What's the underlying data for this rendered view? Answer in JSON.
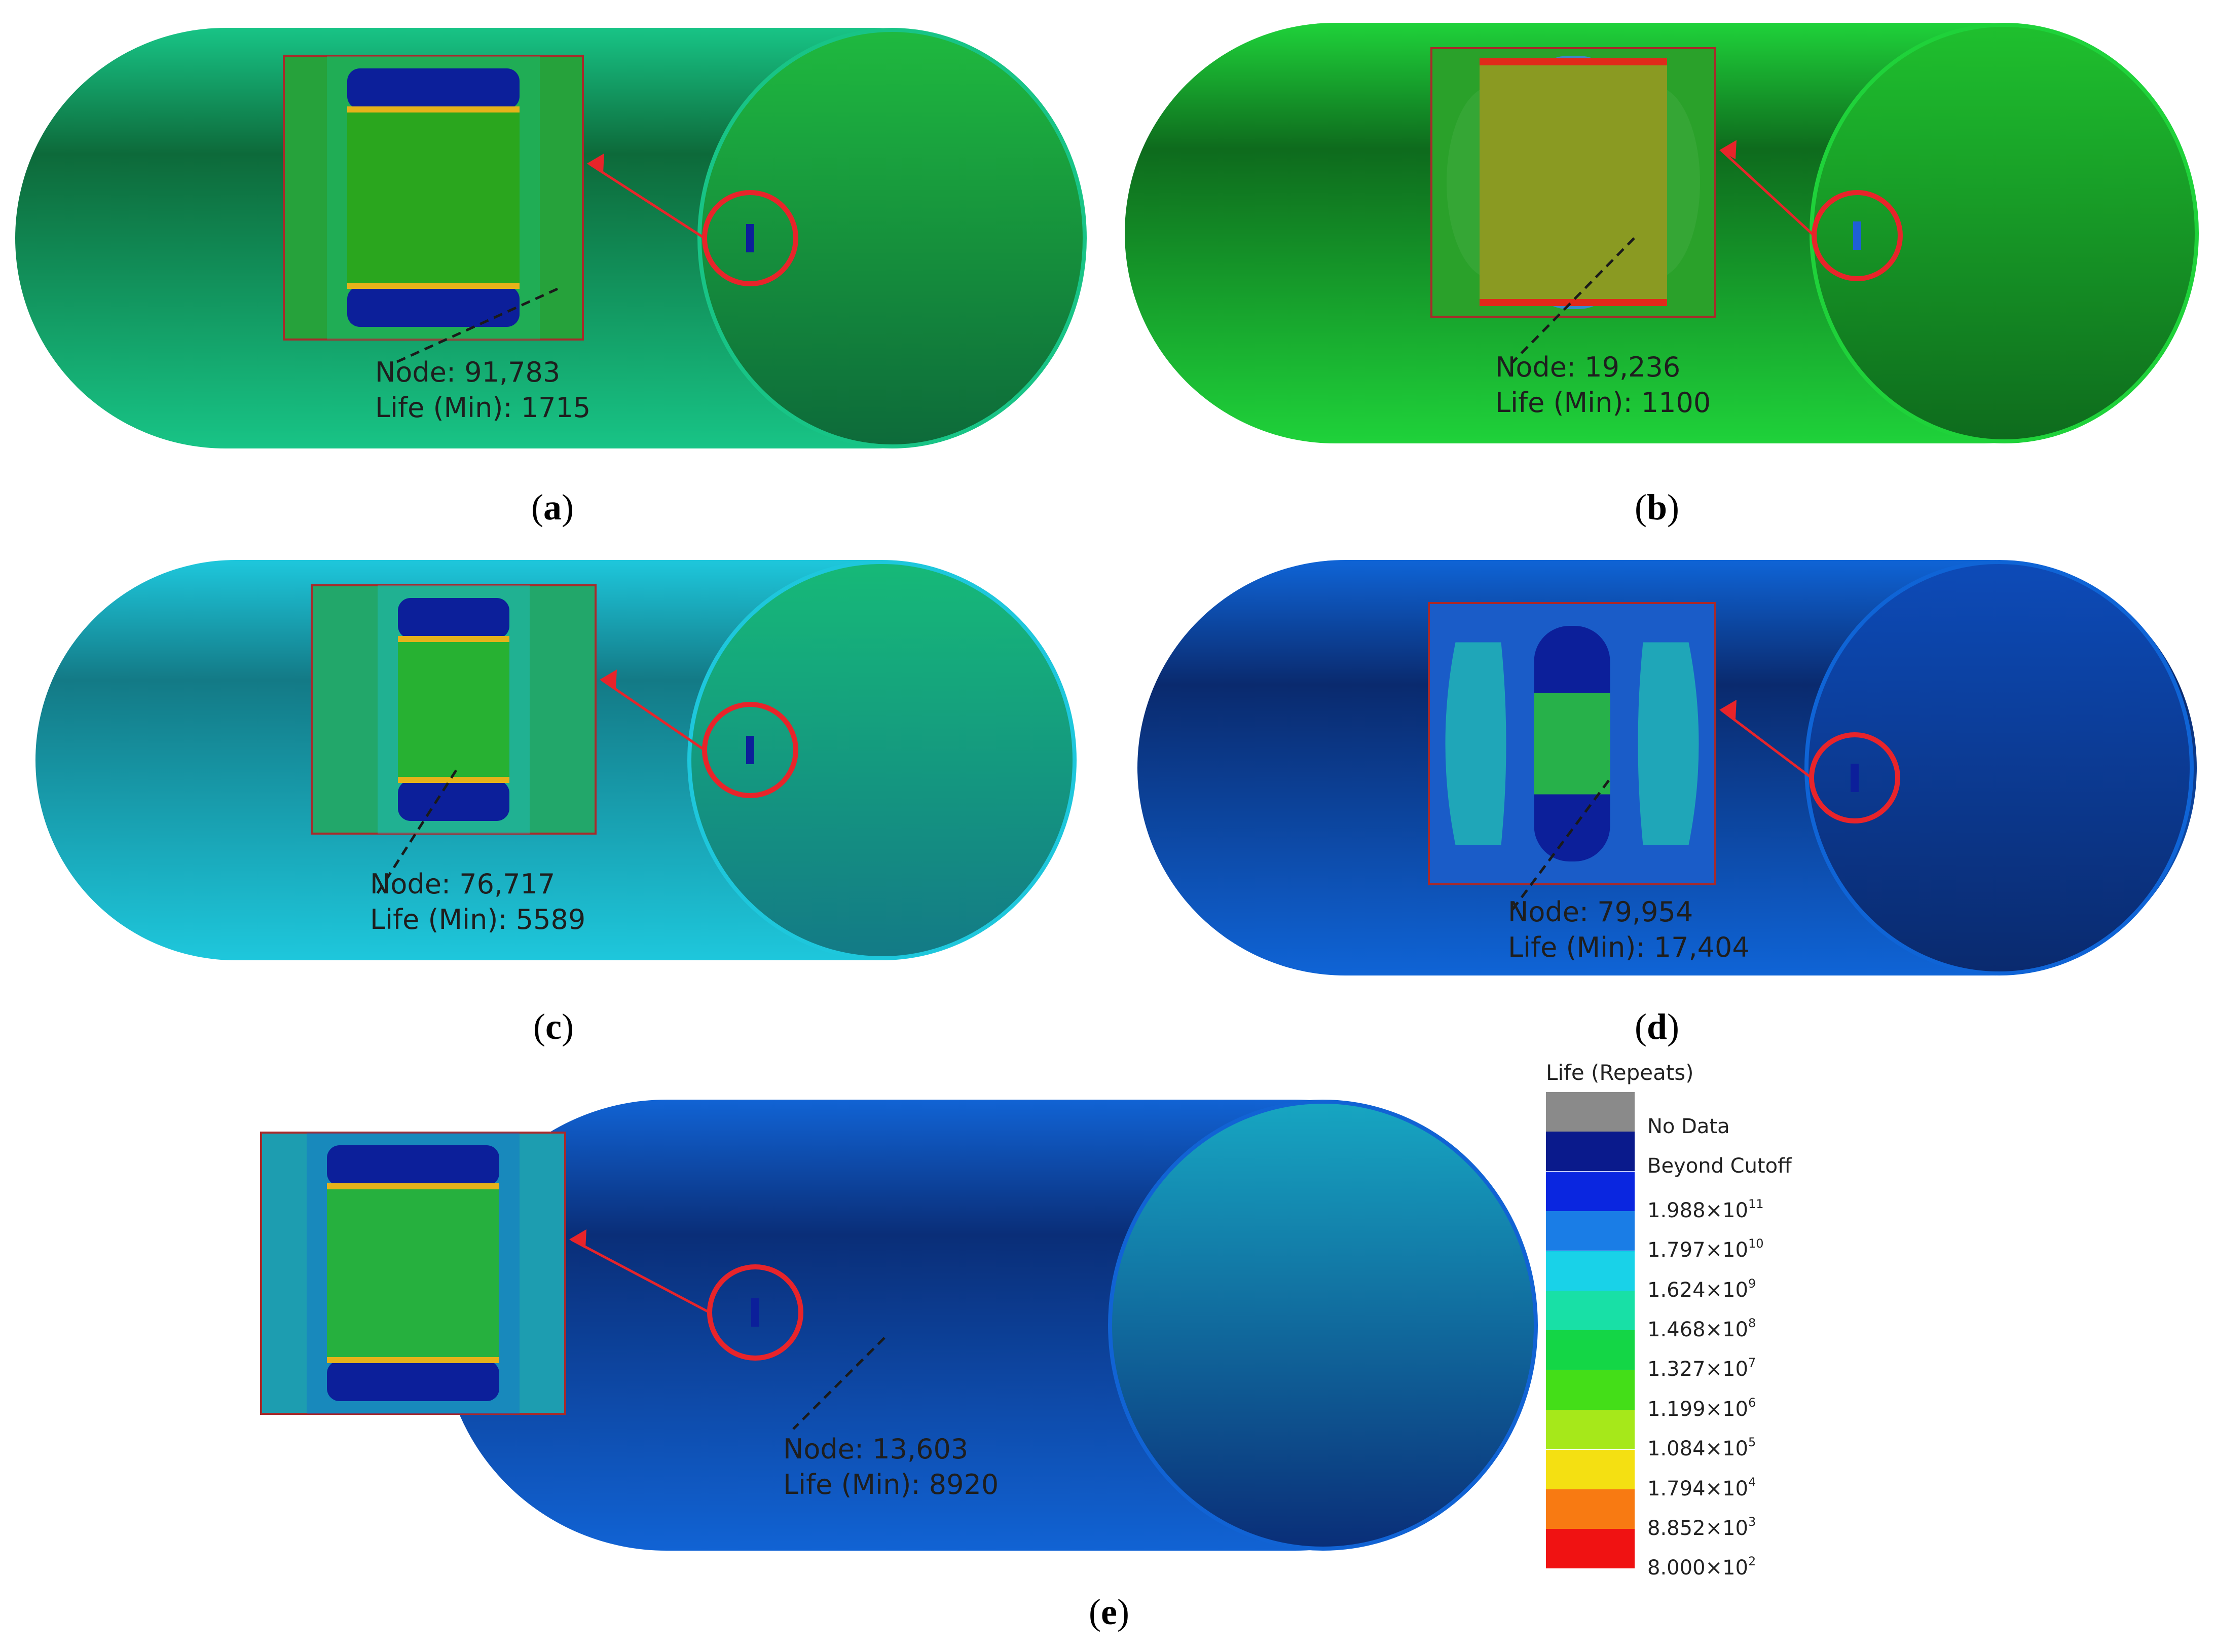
{
  "panels": [
    {
      "id": "a",
      "node_label": "Node: 91,783",
      "life_label": "Life (Min): 1715",
      "caption_letter": "a",
      "colors": {
        "body_dark": "#0d6a3a",
        "body_light": "#18c486",
        "end_face": "#1fb93f",
        "inset_bg": "#26a23b",
        "pad": "#0c1f9a",
        "center": "#2aa61e"
      }
    },
    {
      "id": "b",
      "node_label": "Node: 19,236",
      "life_label": "Life (Min): 1100",
      "caption_letter": "b",
      "colors": {
        "body_dark": "#0e6b1d",
        "body_light": "#1fd23a",
        "end_face": "#1fc02e",
        "inset_bg": "#2aa12a",
        "pad": "#1f5fd6",
        "center": "#8a9a22"
      }
    },
    {
      "id": "c",
      "node_label": "Node: 76,717",
      "life_label": "Life (Min): 5589",
      "caption_letter": "c",
      "colors": {
        "body_dark": "#137a86",
        "body_light": "#1ec7dc",
        "end_face": "#16b978",
        "inset_bg": "#22a76a",
        "pad": "#0c1f9a",
        "center": "#27b132"
      }
    },
    {
      "id": "d",
      "node_label": "Node: 79,954",
      "life_label": "Life (Min): 17,404",
      "caption_letter": "d",
      "colors": {
        "body_dark": "#0a2a6e",
        "body_light": "#0f64d6",
        "end_face": "#0d4bb8",
        "inset_bg": "#1a5cc8",
        "pad": "#0c1f9a",
        "center": "#27b14a"
      }
    },
    {
      "id": "e",
      "node_label": "Node: 13,603",
      "life_label": "Life (Min): 8920",
      "caption_letter": "e",
      "colors": {
        "body_dark": "#0a2e78",
        "body_light": "#1163d4",
        "end_face": "#17a6c2",
        "inset_bg": "#1d9db0",
        "pad": "#0c1f9a",
        "center": "#26b03e"
      }
    }
  ],
  "legend": {
    "title": "Life (Repeats)",
    "entries": [
      {
        "label": "No Data",
        "color": "#8a8a8a"
      },
      {
        "label": "Beyond Cutoff",
        "color": "#0a1a8c"
      },
      {
        "mantissa": "1.988×10",
        "exp": "11",
        "color": "#0a26e0"
      },
      {
        "mantissa": "1.797×10",
        "exp": "10",
        "color": "#1a7de6"
      },
      {
        "mantissa": "1.624×10",
        "exp": "9",
        "color": "#19d2e8"
      },
      {
        "mantissa": "1.468×10",
        "exp": "8",
        "color": "#18e0a6"
      },
      {
        "mantissa": "1.327×10",
        "exp": "7",
        "color": "#14d646"
      },
      {
        "mantissa": "1.199×10",
        "exp": "6",
        "color": "#44de18"
      },
      {
        "mantissa": "1.084×10",
        "exp": "5",
        "color": "#a6e81a"
      },
      {
        "mantissa": "1.794×10",
        "exp": "4",
        "color": "#f4e012"
      },
      {
        "mantissa": "8.852×10",
        "exp": "3",
        "color": "#f87a12"
      },
      {
        "mantissa": "8.000×10",
        "exp": "2",
        "color": "#f01212"
      }
    ]
  },
  "accent": {
    "callout": "#e8242a",
    "leader": "#1a1a1a"
  }
}
